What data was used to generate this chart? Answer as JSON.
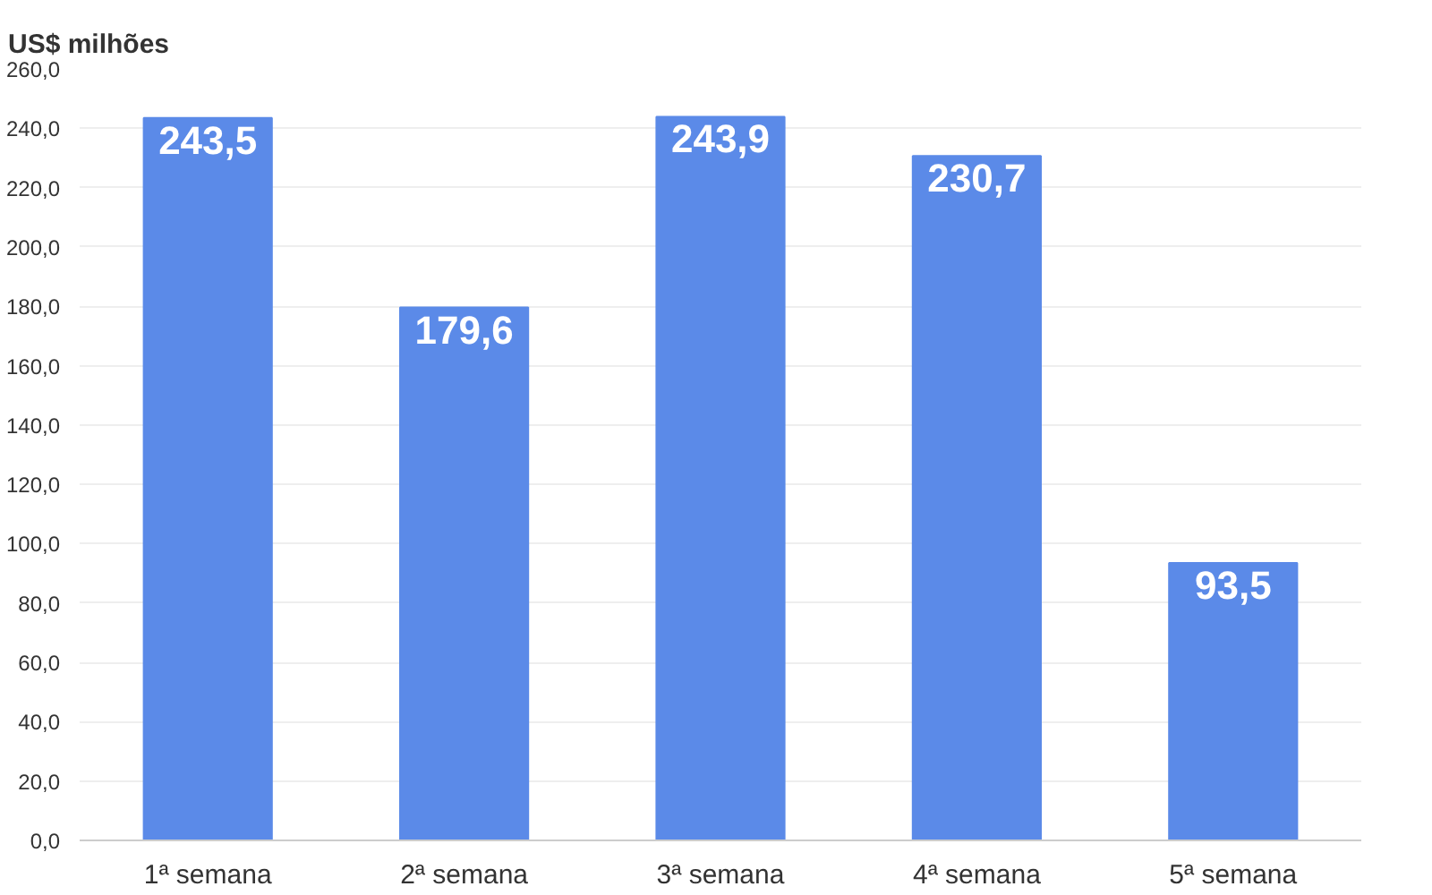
{
  "chart_data": {
    "type": "bar",
    "ylabel": "US$ milhões",
    "categories": [
      "1ª semana",
      "2ª semana",
      "3ª semana",
      "4ª semana",
      "5ª semana"
    ],
    "values": [
      243.5,
      179.6,
      243.9,
      230.7,
      93.5
    ],
    "value_labels": [
      "243,5",
      "179,6",
      "243,9",
      "230,7",
      "93,5"
    ],
    "color": "#5b8ae8",
    "ylim": [
      0,
      260
    ],
    "yticks": [
      {
        "value": 0,
        "label": "0,0"
      },
      {
        "value": 20,
        "label": "20,0"
      },
      {
        "value": 40,
        "label": "40,0"
      },
      {
        "value": 60,
        "label": "60,0"
      },
      {
        "value": 80,
        "label": "80,0"
      },
      {
        "value": 100,
        "label": "100,0"
      },
      {
        "value": 120,
        "label": "120,0"
      },
      {
        "value": 140,
        "label": "140,0"
      },
      {
        "value": 160,
        "label": "160,0"
      },
      {
        "value": 180,
        "label": "180,0"
      },
      {
        "value": 200,
        "label": "200,0"
      },
      {
        "value": 220,
        "label": "220,0"
      },
      {
        "value": 240,
        "label": "240,0"
      },
      {
        "value": 260,
        "label": "260,0"
      }
    ],
    "grid": "y"
  }
}
